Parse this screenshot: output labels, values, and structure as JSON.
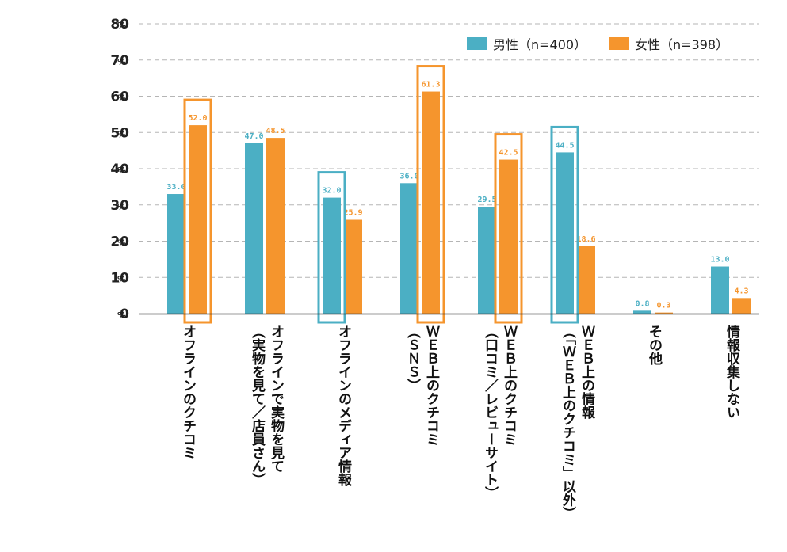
{
  "chart_data": {
    "type": "bar",
    "categories": [
      "オフラインのクチコミ",
      "オフラインで実物を見て（実物を見て／店員さん）",
      "オフラインのメディア情報",
      "ＷＥＢ上のクチコミ（ＳＮＳ）",
      "ＷＥＢ上のクチコミ（口コミ／レビューサイト）",
      "ＷＥＢ上の情報（「ＷＥＢ上のクチコミ」以外）",
      "その他",
      "情報収集しない"
    ],
    "category_lines": [
      [
        "オフラインのクチコミ"
      ],
      [
        "オフラインで実物を見て",
        "（実物を見て／店員さん）"
      ],
      [
        "オフラインのメディア情報"
      ],
      [
        "ＷＥＢ上のクチコミ",
        "（ＳＮＳ）"
      ],
      [
        "ＷＥＢ上のクチコミ",
        "（口コミ／レビューサイト）"
      ],
      [
        "ＷＥＢ上の情報",
        "（「ＷＥＢ上のクチコミ」以外）"
      ],
      [
        "その他"
      ],
      [
        "情報収集しない"
      ]
    ],
    "series": [
      {
        "name": "男性（n=400）",
        "color": "#4bafc4",
        "values": [
          33.0,
          47.0,
          32.0,
          36.0,
          29.5,
          44.5,
          0.8,
          13.0
        ],
        "labels": [
          "33.0",
          "47.0",
          "32.0",
          "36.0",
          "29.5",
          "44.5",
          "0.8",
          "13.0"
        ]
      },
      {
        "name": "女性（n=398）",
        "color": "#f5952d",
        "values": [
          52.0,
          48.5,
          25.9,
          61.3,
          42.5,
          18.6,
          0.3,
          4.3
        ],
        "labels": [
          "52.0",
          "48.5",
          "25.9",
          "61.3",
          "42.5",
          "18.6",
          "0.3",
          "4.3"
        ]
      }
    ],
    "highlights": [
      {
        "category": 0,
        "series": 1
      },
      {
        "category": 2,
        "series": 0
      },
      {
        "category": 3,
        "series": 1
      },
      {
        "category": 4,
        "series": 1
      },
      {
        "category": 5,
        "series": 0
      }
    ],
    "yticks": [
      "0",
      "10",
      "20",
      "30",
      "40",
      "50",
      "60",
      "70",
      "80"
    ],
    "ytick_unit": "%",
    "ylim": [
      0,
      80
    ],
    "grid": true,
    "legend_position": "top-right"
  }
}
